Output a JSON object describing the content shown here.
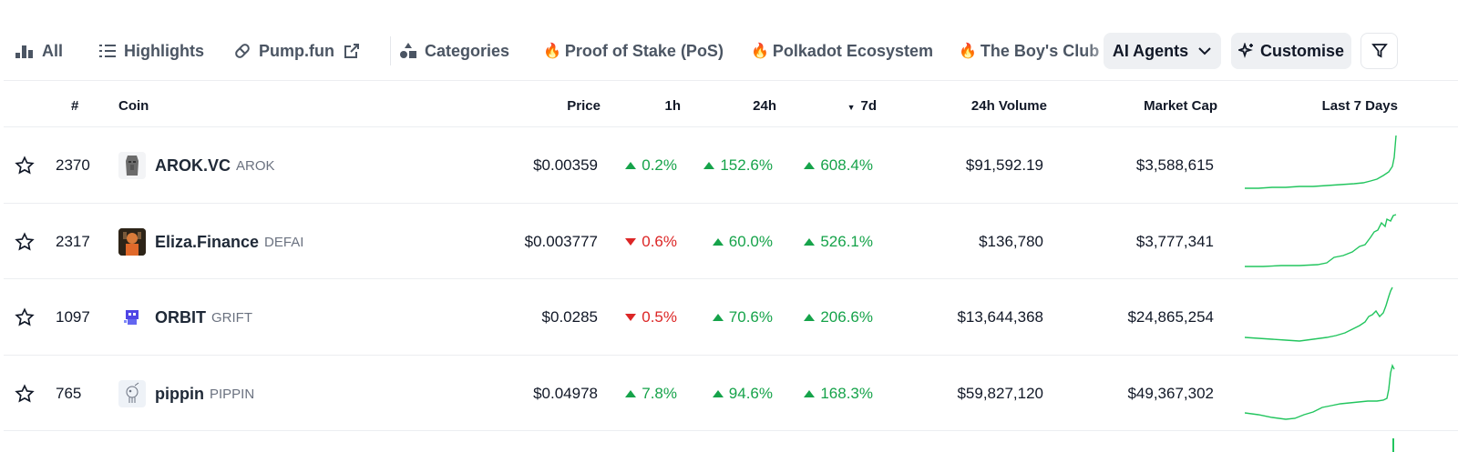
{
  "tabs": {
    "all": "All",
    "highlights": "Highlights",
    "pumpfun": "Pump.fun",
    "categories": "Categories",
    "pos": "Proof of Stake (PoS)",
    "polkadot": "Polkadot Ecosystem",
    "boys_club": "The Boy's Club"
  },
  "buttons": {
    "ai_agents": "AI Agents",
    "customise": "Customise"
  },
  "columns": {
    "rank": "#",
    "coin": "Coin",
    "price": "Price",
    "h1": "1h",
    "h24": "24h",
    "d7": "7d",
    "volume": "24h Volume",
    "market_cap": "Market Cap",
    "last7": "Last 7 Days"
  },
  "sort_indicator": "▼",
  "colors": {
    "up": "#16a34a",
    "down": "#dc2626",
    "sparkline": "#22c55e"
  },
  "rows": [
    {
      "rank": "2370",
      "name": "AROK.VC",
      "symbol": "AROK",
      "price": "$0.00359",
      "h1": "0.2%",
      "h1_dir": "up",
      "h24": "152.6%",
      "h24_dir": "up",
      "d7": "608.4%",
      "d7_dir": "up",
      "volume": "$91,592.19",
      "market_cap": "$3,588,615",
      "logo": "moai-statue-icon"
    },
    {
      "rank": "2317",
      "name": "Eliza.Finance",
      "symbol": "DEFAI",
      "price": "$0.003777",
      "h1": "0.6%",
      "h1_dir": "down",
      "h24": "60.0%",
      "h24_dir": "up",
      "d7": "526.1%",
      "d7_dir": "up",
      "volume": "$136,780",
      "market_cap": "$3,777,341",
      "logo": "eliza-avatar-icon"
    },
    {
      "rank": "1097",
      "name": "ORBIT",
      "symbol": "GRIFT",
      "price": "$0.0285",
      "h1": "0.5%",
      "h1_dir": "down",
      "h24": "70.6%",
      "h24_dir": "up",
      "d7": "206.6%",
      "d7_dir": "up",
      "volume": "$13,644,368",
      "market_cap": "$24,865,254",
      "logo": "pixel-robot-icon"
    },
    {
      "rank": "765",
      "name": "pippin",
      "symbol": "PIPPIN",
      "price": "$0.04978",
      "h1": "7.8%",
      "h1_dir": "up",
      "h24": "94.6%",
      "h24_dir": "up",
      "d7": "168.3%",
      "d7_dir": "up",
      "volume": "$59,827,120",
      "market_cap": "$49,367,302",
      "logo": "unicorn-sketch-icon"
    }
  ]
}
